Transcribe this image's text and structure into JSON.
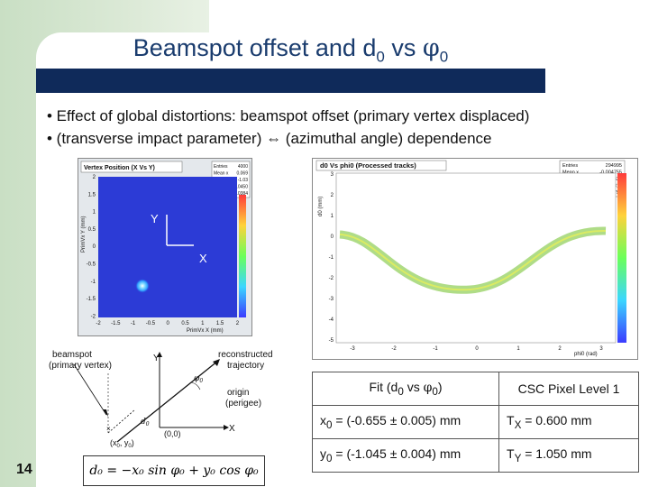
{
  "title": {
    "main": "Beamspot offset and d",
    "sub": "0",
    "mid": " vs ",
    "phi": "φ",
    "phi_sub": "0"
  },
  "bullets": [
    "• Effect of global distortions: beamspot offset (primary vertex displaced)",
    "• (transverse impact parameter) ⇔ (azimuthal angle) dependence"
  ],
  "vertex_plot": {
    "title": "Vertex Position (X Vs Y)",
    "ylabel": "PrimVx Y (mm)",
    "xlabel": "PrimVx X (mm)",
    "yticks": [
      "2",
      "1.5",
      "1",
      "0.5",
      "0",
      "-0.5",
      "-1",
      "-1.5",
      "-2"
    ],
    "xticks": [
      "-2",
      "-1.5",
      "-1",
      "-0.5",
      "0",
      "0.5",
      "1",
      "1.5",
      "2"
    ],
    "stats": [
      [
        "Entries",
        "4000"
      ],
      [
        "Mean x",
        "0.069"
      ],
      [
        "Mean y",
        "-1.03"
      ],
      [
        "RMS x",
        "0.0450"
      ],
      [
        "RMS y",
        "0.0384"
      ]
    ],
    "axis_y": "Y",
    "axis_x": "X"
  },
  "d0_plot": {
    "title": "d0 Vs phi0 (Processed tracks)",
    "ylabel": "d0 (mm)",
    "xlabel": "phi0 (rad)",
    "yticks": [
      "3",
      "2",
      "1",
      "0",
      "-1",
      "-2",
      "-3",
      "-4",
      "-5"
    ],
    "xticks": [
      "-3",
      "-2",
      "-1",
      "0",
      "1",
      "2",
      "3"
    ],
    "stats": [
      [
        "Entries",
        "294995"
      ],
      [
        "Mean x",
        "-0.004755"
      ],
      [
        "Mean y",
        "-0.03637"
      ],
      [
        "RMS x",
        "1.816"
      ],
      [
        "RMS y",
        "0.8794"
      ]
    ]
  },
  "diagram": {
    "beamspot": "beamspot",
    "primary_vertex": "(primary vertex)",
    "reconstructed": "reconstructed",
    "trajectory": "trajectory",
    "origin": "origin",
    "perigee": "(perigee)",
    "y": "Y",
    "x": "X",
    "d0": "d",
    "d0_sub": "0",
    "phi0": "φ",
    "phi0_sub": "0",
    "origin_coord": "(0,0)",
    "beam_coord": "(x",
    "beam_coord_sub0": "0",
    "beam_coord_mid": ", y",
    "beam_coord_sub1": "0",
    "beam_coord_end": ")"
  },
  "formula": "d₀ = −x₀ sin φ₀ + y₀ cos φ₀",
  "fit_table": {
    "col1_header_a": "Fit (d",
    "col1_header_sub": "0",
    "col1_header_b": " vs ",
    "col1_header_phi": "φ",
    "col1_header_phisub": "0",
    "col1_header_c": ")",
    "col2_header": "CSC Pixel Level 1",
    "row1_a": "x",
    "row1_sub": "0",
    "row1_b": " = (-0.655 ± 0.005)  mm",
    "row1_c": "T",
    "row1_csub": "X",
    "row1_d": " = 0.600 mm",
    "row2_a": "y",
    "row2_sub": "0",
    "row2_b": " = (-1.045 ± 0.004) mm",
    "row2_c": "T",
    "row2_csub": "Y",
    "row2_d": " = 1.050 mm"
  },
  "page_number": "14"
}
